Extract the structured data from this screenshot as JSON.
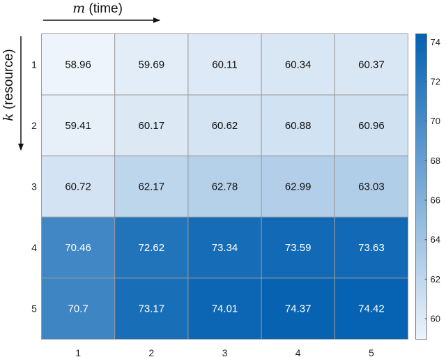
{
  "chart_data": {
    "type": "heatmap",
    "xlabel_var": "m",
    "xlabel_text": " (time)",
    "ylabel_var": "k",
    "ylabel_text": " (resource)",
    "x_categories": [
      "1",
      "2",
      "3",
      "4",
      "5"
    ],
    "y_categories": [
      "1",
      "2",
      "3",
      "4",
      "5"
    ],
    "values": [
      [
        58.96,
        59.69,
        60.11,
        60.34,
        60.37
      ],
      [
        59.41,
        60.17,
        60.62,
        60.88,
        60.96
      ],
      [
        60.72,
        62.17,
        62.78,
        62.99,
        63.03
      ],
      [
        70.46,
        72.62,
        73.34,
        73.59,
        73.63
      ],
      [
        70.7,
        73.17,
        74.01,
        74.37,
        74.42
      ]
    ],
    "value_labels": [
      [
        "58.96",
        "59.69",
        "60.11",
        "60.34",
        "60.37"
      ],
      [
        "59.41",
        "60.17",
        "60.62",
        "60.88",
        "60.96"
      ],
      [
        "60.72",
        "62.17",
        "62.78",
        "62.99",
        "63.03"
      ],
      [
        "70.46",
        "72.62",
        "73.34",
        "73.59",
        "73.63"
      ],
      [
        "70.7",
        "73.17",
        "74.01",
        "74.37",
        "74.42"
      ]
    ],
    "colorbar": {
      "range": [
        58.96,
        74.42
      ],
      "ticks": [
        "60",
        "62",
        "64",
        "66",
        "68",
        "70",
        "72",
        "74"
      ],
      "color_low": "#eef4fb",
      "color_high": "#0662b2"
    }
  }
}
